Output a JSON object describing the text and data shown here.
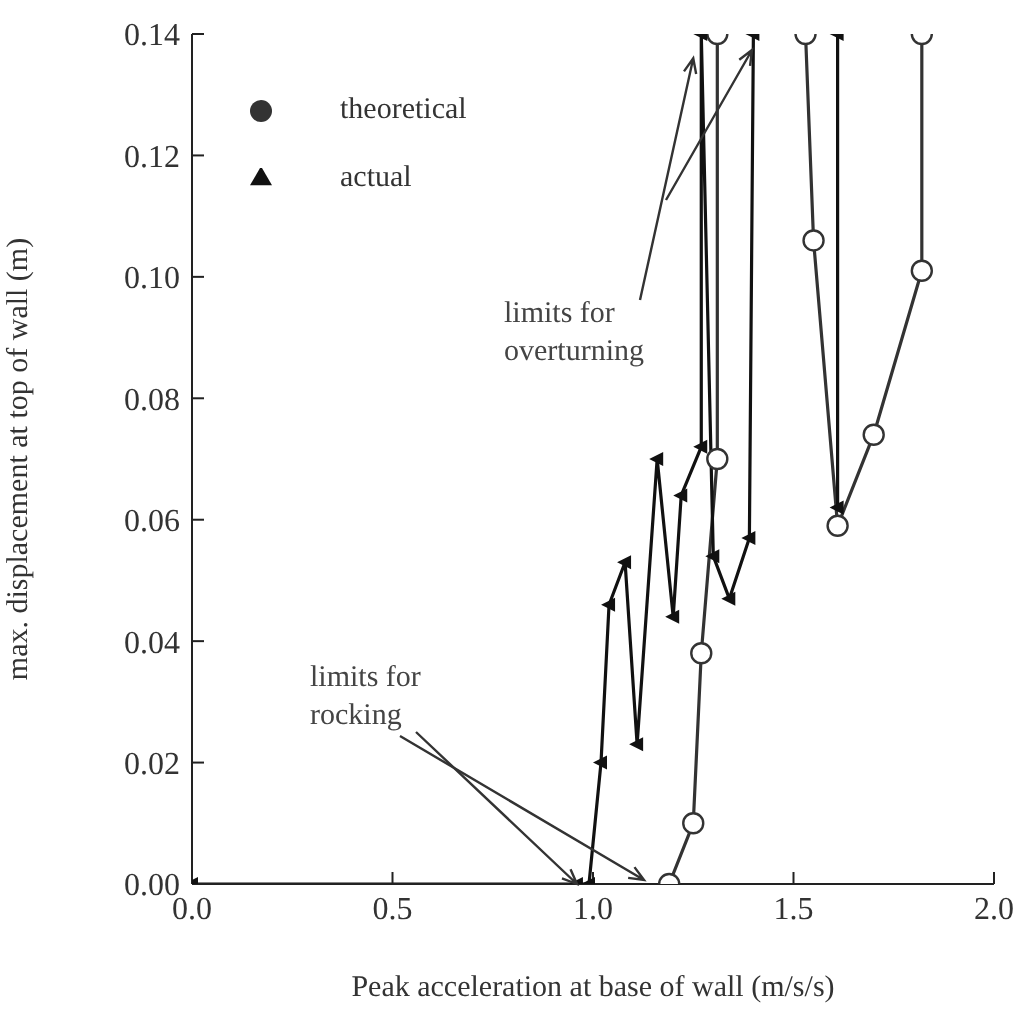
{
  "chart_data": {
    "type": "line",
    "xlabel": "Peak acceleration at base of wall (m/s/s)",
    "ylabel": "max. displacement at top of wall (m)",
    "annotations": [
      {
        "text": "limits for overturning",
        "x": 1.25,
        "y": 0.136
      },
      {
        "text": "limits for rocking",
        "x": 0.96,
        "y": 0
      }
    ],
    "series": [
      {
        "name": "theoretical",
        "color": "#333333",
        "marker": "circle",
        "x": [
          1.19,
          1.25,
          1.27,
          1.31,
          1.31,
          null,
          1.53,
          1.55,
          1.61,
          1.7,
          1.82,
          1.82
        ],
        "values": [
          0,
          0.01,
          0.038,
          0.07,
          0.14,
          null,
          0.14,
          0.106,
          0.059,
          0.074,
          0.101,
          0.14
        ]
      },
      {
        "name": "actual",
        "color": "#111111",
        "marker": "triangle",
        "x": [
          0,
          0.96,
          0.99,
          1.02,
          1.04,
          1.08,
          1.11,
          1.16,
          1.2,
          1.22,
          1.27,
          1.27,
          1.3,
          1.34,
          1.39,
          1.4,
          null,
          1.61,
          1.61
        ],
        "values": [
          0,
          0,
          0,
          0.02,
          0.046,
          0.053,
          0.023,
          0.07,
          0.044,
          0.064,
          0.072,
          0.14,
          0.054,
          0.047,
          0.057,
          0.14,
          null,
          0.14,
          0.062
        ]
      }
    ],
    "xlim": [
      0,
      2.0
    ],
    "xticks": [
      {
        "value": 0,
        "label": "0.0"
      },
      {
        "value": 0.5,
        "label": "0.5"
      },
      {
        "value": 1,
        "label": "1.0"
      },
      {
        "value": 1.5,
        "label": "1.5"
      },
      {
        "value": 2,
        "label": "2.0"
      }
    ],
    "ylim": [
      0,
      0.14
    ],
    "yticks": [
      {
        "value": 0,
        "label": "0.00"
      },
      {
        "value": 0.02,
        "label": "0.02"
      },
      {
        "value": 0.04,
        "label": "0.04"
      },
      {
        "value": 0.06,
        "label": "0.06"
      },
      {
        "value": 0.08,
        "label": "0.08"
      },
      {
        "value": 0.1,
        "label": "0.10"
      },
      {
        "value": 0.12,
        "label": "0.12"
      },
      {
        "value": 0.14,
        "label": "0.14"
      }
    ],
    "grid": false,
    "legend": "top left",
    "line_style": "solid"
  }
}
